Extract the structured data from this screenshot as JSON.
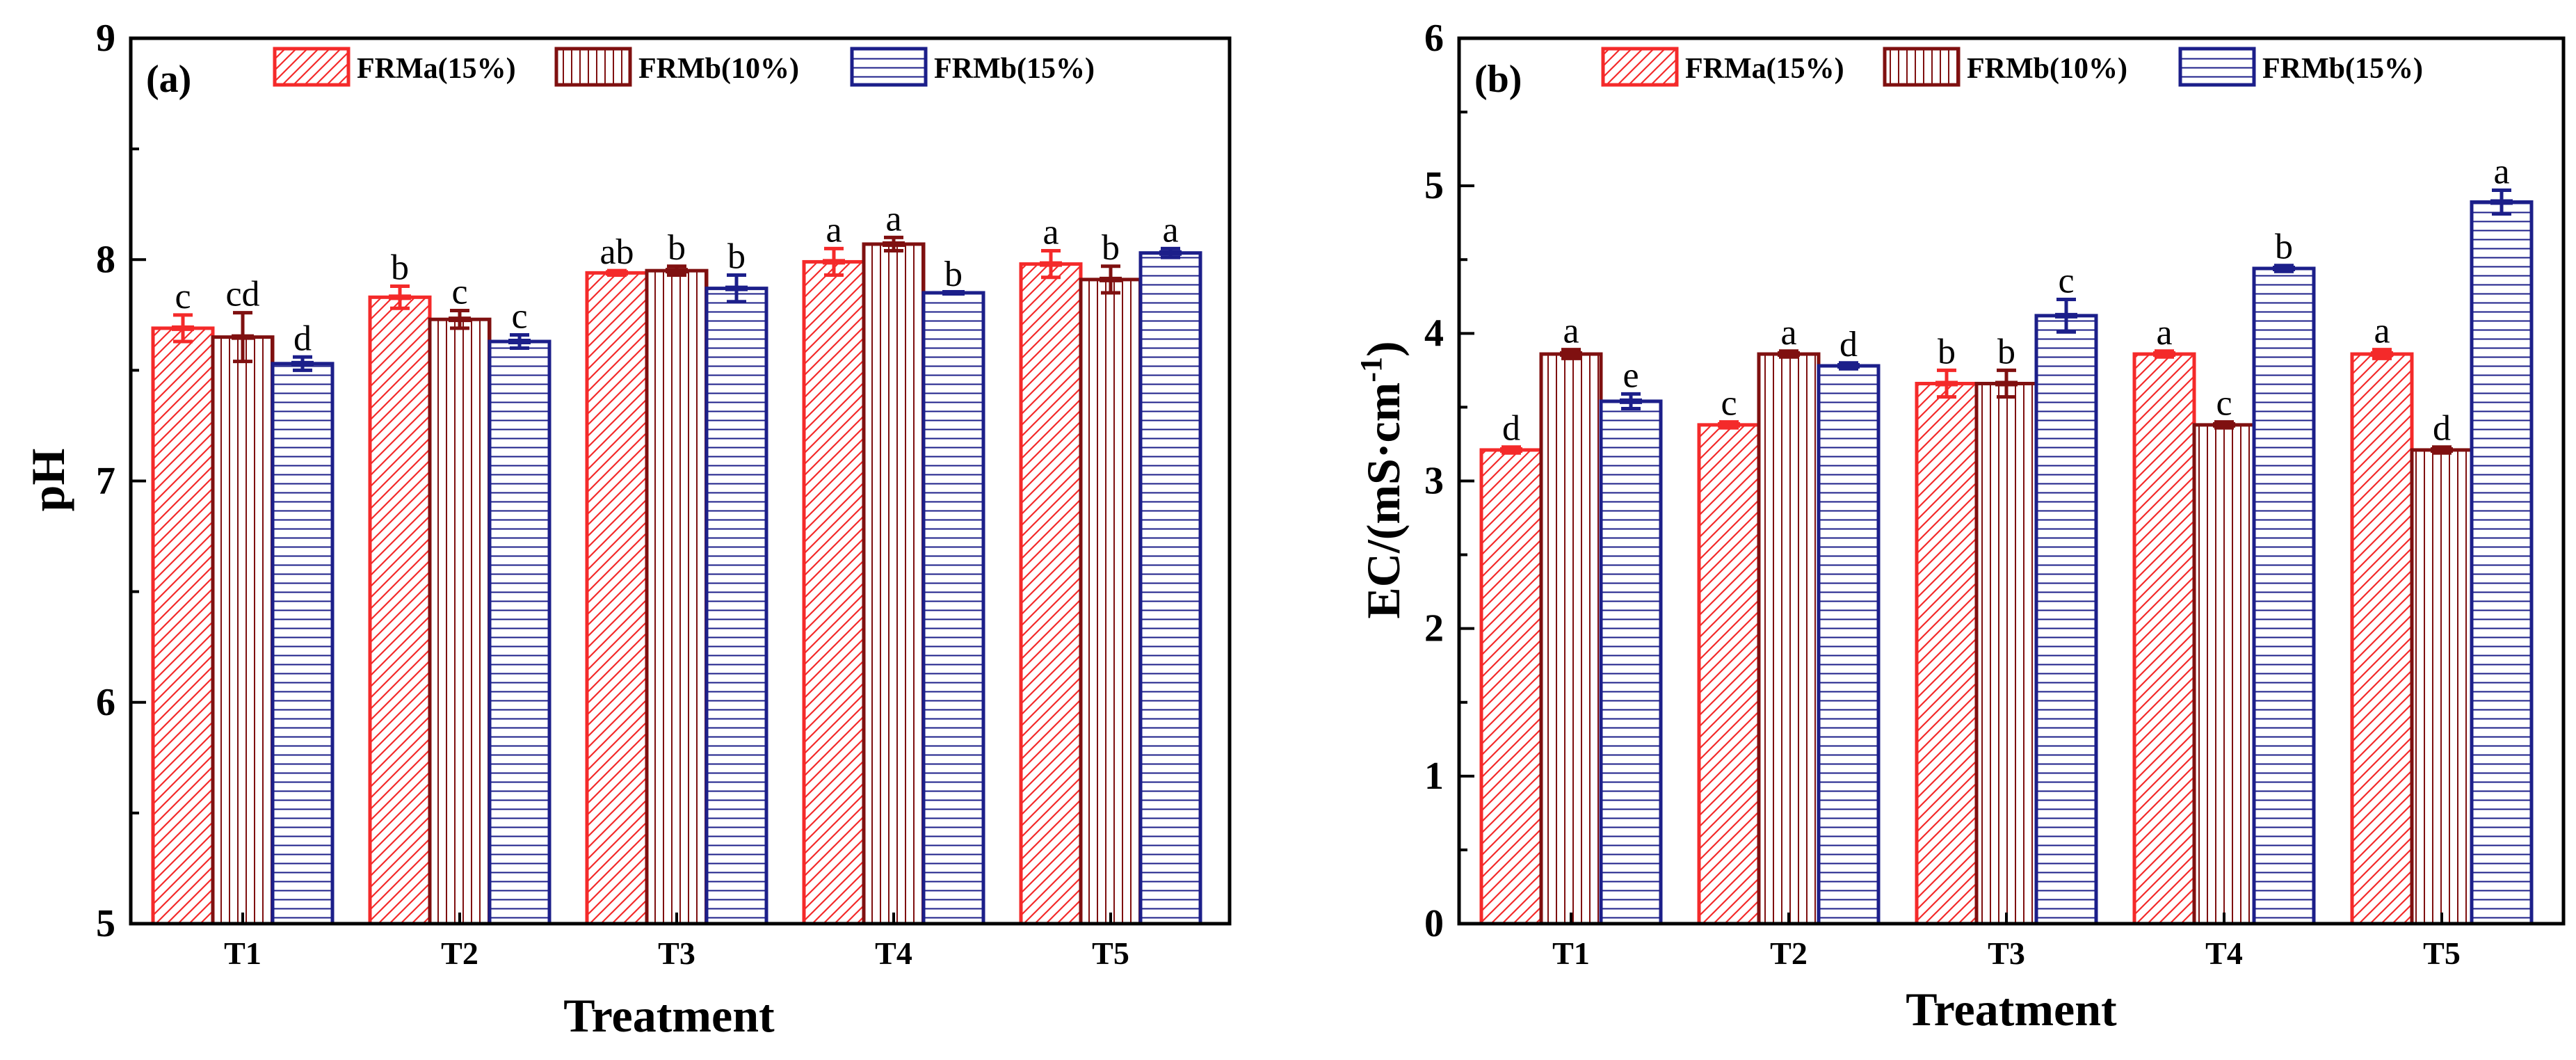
{
  "chart_data": [
    {
      "type": "bar",
      "panel_label": "(a)",
      "categories": [
        "T1",
        "T2",
        "T3",
        "T4",
        "T5"
      ],
      "xlabel": "Treatment",
      "ylabel": "pH",
      "ylim": [
        5,
        9
      ],
      "yticks": [
        5,
        6,
        7,
        8,
        9
      ],
      "legend_position": "top",
      "series": [
        {
          "name": "FRMa(15%)",
          "pattern": "diagonal",
          "values": [
            7.69,
            7.83,
            7.94,
            7.99,
            7.98
          ],
          "errors": [
            0.06,
            0.05,
            0.01,
            0.06,
            0.06
          ],
          "letters": [
            "c",
            "b",
            "ab",
            "a",
            "a"
          ]
        },
        {
          "name": "FRMb(10%)",
          "pattern": "vertical",
          "values": [
            7.65,
            7.73,
            7.95,
            8.07,
            7.91
          ],
          "errors": [
            0.11,
            0.04,
            0.02,
            0.03,
            0.06
          ],
          "letters": [
            "cd",
            "c",
            "b",
            "a",
            "b"
          ]
        },
        {
          "name": "FRMb(15%)",
          "pattern": "horizontal",
          "values": [
            7.53,
            7.63,
            7.87,
            7.85,
            8.03
          ],
          "errors": [
            0.03,
            0.03,
            0.06,
            0.0,
            0.02
          ],
          "letters": [
            "d",
            "c",
            "b",
            "b",
            "a"
          ]
        }
      ]
    },
    {
      "type": "bar",
      "panel_label": "(b)",
      "categories": [
        "T1",
        "T2",
        "T3",
        "T4",
        "T5"
      ],
      "xlabel": "Treatment",
      "ylabel": "EC/(mS·cm",
      "ylabel_sup": "-1",
      "ylabel_end": ")",
      "ylim": [
        0,
        6
      ],
      "yticks": [
        0,
        1,
        2,
        3,
        4,
        5,
        6
      ],
      "legend_position": "top",
      "series": [
        {
          "name": "FRMa(15%)",
          "pattern": "diagonal",
          "values": [
            3.21,
            3.38,
            3.66,
            3.86,
            3.86
          ],
          "errors": [
            0.02,
            0.02,
            0.09,
            0.02,
            0.03
          ],
          "letters": [
            "d",
            "c",
            "b",
            "a",
            "a"
          ]
        },
        {
          "name": "FRMb(10%)",
          "pattern": "vertical",
          "values": [
            3.86,
            3.86,
            3.66,
            3.38,
            3.21
          ],
          "errors": [
            0.03,
            0.02,
            0.09,
            0.02,
            0.02
          ],
          "letters": [
            "a",
            "a",
            "b",
            "c",
            "d"
          ]
        },
        {
          "name": "FRMb(15%)",
          "pattern": "horizontal",
          "values": [
            3.54,
            3.78,
            4.12,
            4.44,
            4.89
          ],
          "errors": [
            0.05,
            0.02,
            0.11,
            0.02,
            0.08
          ],
          "letters": [
            "e",
            "d",
            "c",
            "b",
            "a"
          ]
        }
      ]
    }
  ],
  "colors": {
    "series": [
      "#f42a2a",
      "#7f1010",
      "#1c1f8a"
    ],
    "axis": "#000000",
    "background": "#ffffff"
  }
}
